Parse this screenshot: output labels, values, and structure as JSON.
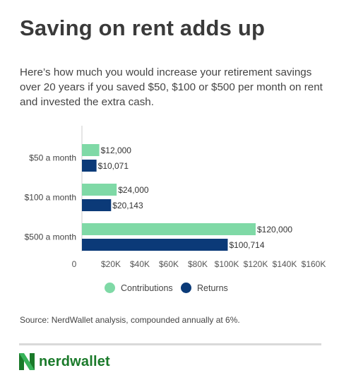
{
  "header": {
    "title": "Saving on rent adds up",
    "subtitle": "Here’s how much you would increase your retirement savings over 20 years if you saved $50, $100 or $500 per month on rent and invested the extra cash."
  },
  "chart_data": {
    "type": "bar",
    "orientation": "horizontal",
    "categories": [
      "$50 a month",
      "$100 a month",
      "$500 a month"
    ],
    "series": [
      {
        "name": "Contributions",
        "values": [
          12000,
          24000,
          120000
        ],
        "labels": [
          "$12,000",
          "$24,000",
          "$120,000"
        ],
        "color": "#7fd9a6"
      },
      {
        "name": "Returns",
        "values": [
          10071,
          20143,
          100714
        ],
        "labels": [
          "$10,071",
          "$20,143",
          "$100,714"
        ],
        "color": "#0b3a78"
      }
    ],
    "xlim": [
      0,
      160000
    ],
    "xticks": [
      0,
      20000,
      40000,
      60000,
      80000,
      100000,
      120000,
      140000,
      160000
    ],
    "xtick_labels": [
      "0",
      "$20K",
      "$40K",
      "$60K",
      "$80K",
      "$100K",
      "$120K",
      "$140K",
      "$160K"
    ],
    "legend_position": "bottom",
    "grid": false
  },
  "footer": {
    "source": "Source: NerdWallet analysis, compounded annually at 6%.",
    "logo_text": "nerdwallet",
    "logo_icon": "nerdwallet-n-icon",
    "logo_color": "#1a7a2a"
  }
}
